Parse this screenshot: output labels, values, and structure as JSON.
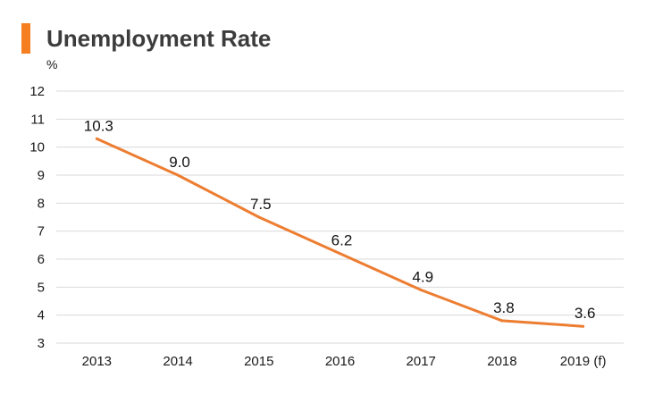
{
  "chart_data": {
    "type": "line",
    "title": "Unemployment Rate",
    "ylabel": "%",
    "xlabel": "",
    "categories": [
      "2013",
      "2014",
      "2015",
      "2016",
      "2017",
      "2018",
      "2019 (f)"
    ],
    "series": [
      {
        "values": [
          10.3,
          9.0,
          7.5,
          6.2,
          4.9,
          3.8,
          3.6
        ],
        "data_labels": [
          "10.3",
          "9.0",
          "7.5",
          "6.2",
          "4.9",
          "3.8",
          "3.6"
        ]
      }
    ],
    "ylim": [
      3,
      12
    ],
    "yticks": [
      "3",
      "4",
      "5",
      "6",
      "7",
      "8",
      "9",
      "10",
      "11",
      "12"
    ],
    "grid": true,
    "legend": "none",
    "colors": {
      "line": "#ED7D31",
      "accent": "#F47E20",
      "grid": "#D9D9D9",
      "title": "#3C3C3C"
    }
  }
}
